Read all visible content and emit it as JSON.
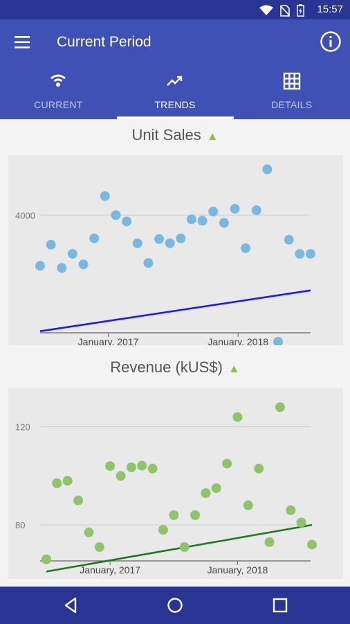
{
  "status_bar": {
    "time": "15:57",
    "icons": [
      "wifi-icon",
      "no-sim-icon",
      "battery-icon"
    ]
  },
  "app_bar": {
    "title": "Current Period",
    "menu_icon": "menu-icon",
    "info_icon": "info-icon"
  },
  "tabs": [
    {
      "label": "CURRENT",
      "icon": "wifi-icon",
      "active": false
    },
    {
      "label": "TRENDS",
      "icon": "trending-up-icon",
      "active": true
    },
    {
      "label": "DETAILS",
      "icon": "grid-icon",
      "active": false
    }
  ],
  "colors": {
    "primary": "#3f51b5",
    "primary_dark": "#283593",
    "unit_sales_points": "#7ab8e0",
    "unit_sales_trend": "#1a1aff",
    "revenue_points": "#8fc46b",
    "revenue_trend": "#1f7a1f",
    "trend_up": "#8bc34a"
  },
  "chart_data": [
    {
      "type": "scatter",
      "title": "Unit Sales",
      "trend_indicator": "▲",
      "x_tick_labels": [
        "January, 2017",
        "January, 2018"
      ],
      "y_tick_labels": [
        "4000"
      ],
      "y_ticks": [
        4000
      ],
      "ylim": [
        2150,
        4850
      ],
      "x": [
        0,
        1,
        2,
        3,
        4,
        5,
        6,
        7,
        8,
        9,
        10,
        11,
        12,
        13,
        14,
        15,
        16,
        17,
        18,
        19,
        20,
        21,
        22,
        23,
        24,
        25
      ],
      "y": [
        3280,
        3580,
        3250,
        3450,
        3300,
        3670,
        4270,
        4000,
        3910,
        3600,
        3320,
        3660,
        3600,
        3670,
        3940,
        3920,
        4050,
        3890,
        4090,
        3530,
        4070,
        4650,
        2200,
        3650,
        3450,
        3450
      ],
      "x_tick_positions": [
        6.3,
        18.3
      ],
      "trend": {
        "x": [
          0,
          25
        ],
        "y": [
          2350,
          2930
        ]
      },
      "grid": true
    },
    {
      "type": "scatter",
      "title": "Revenue (kUS$)",
      "trend_indicator": "▲",
      "x_tick_labels": [
        "January, 2017",
        "January, 2018"
      ],
      "y_tick_labels": [
        "120",
        "80"
      ],
      "y_ticks": [
        120,
        80
      ],
      "ylim": [
        58,
        136
      ],
      "x": [
        0,
        1,
        2,
        3,
        4,
        5,
        6,
        7,
        8,
        9,
        10,
        11,
        12,
        13,
        14,
        15,
        16,
        17,
        18,
        19,
        20,
        21,
        22,
        23,
        24,
        25
      ],
      "y": [
        66,
        97,
        98,
        90,
        77,
        71,
        104,
        100,
        103.5,
        104.2,
        103,
        78,
        84,
        71,
        84,
        93,
        95,
        105,
        124,
        88,
        103,
        73,
        128,
        86,
        81,
        72
      ],
      "x_tick_positions": [
        6,
        18
      ],
      "trend": {
        "x": [
          0,
          25
        ],
        "y": [
          61,
          80
        ]
      },
      "grid": true
    }
  ],
  "nav_bar": {
    "back_icon": "back-icon",
    "home_icon": "home-icon",
    "recents_icon": "recents-icon"
  }
}
